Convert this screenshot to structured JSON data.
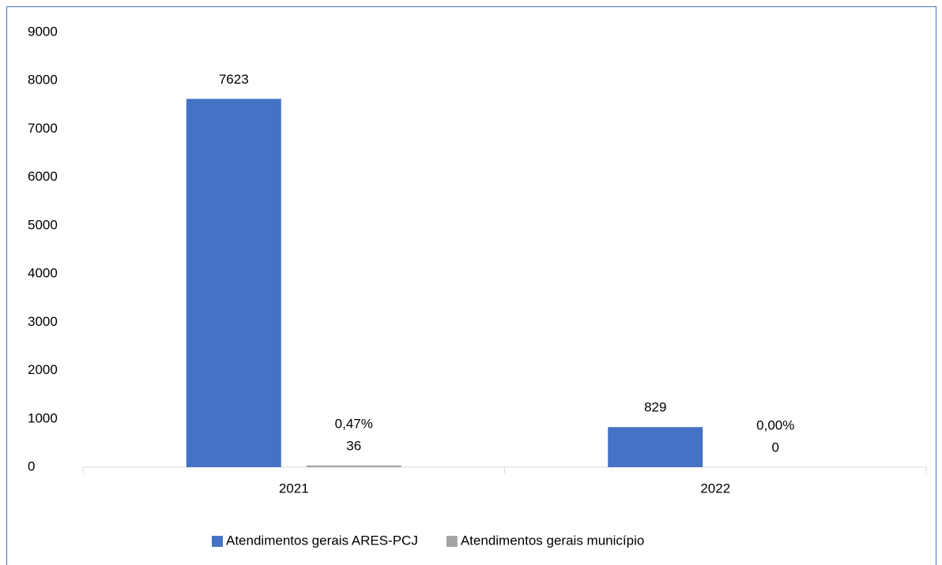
{
  "chart_data": {
    "type": "bar",
    "categories": [
      "2021",
      "2022"
    ],
    "series": [
      {
        "name": "Atendimentos gerais ARES-PCJ",
        "color": "#4472c4",
        "values": [
          7623,
          829
        ]
      },
      {
        "name": "Atendimentos gerais município",
        "color": "#a5a5a5",
        "values": [
          36,
          0
        ],
        "annotations": [
          "0,47%",
          "0,00%"
        ]
      }
    ],
    "ylim": [
      0,
      9000
    ],
    "yticks": [
      0,
      1000,
      2000,
      3000,
      4000,
      5000,
      6000,
      7000,
      8000,
      9000
    ],
    "grid": false,
    "legend": "bottom"
  }
}
